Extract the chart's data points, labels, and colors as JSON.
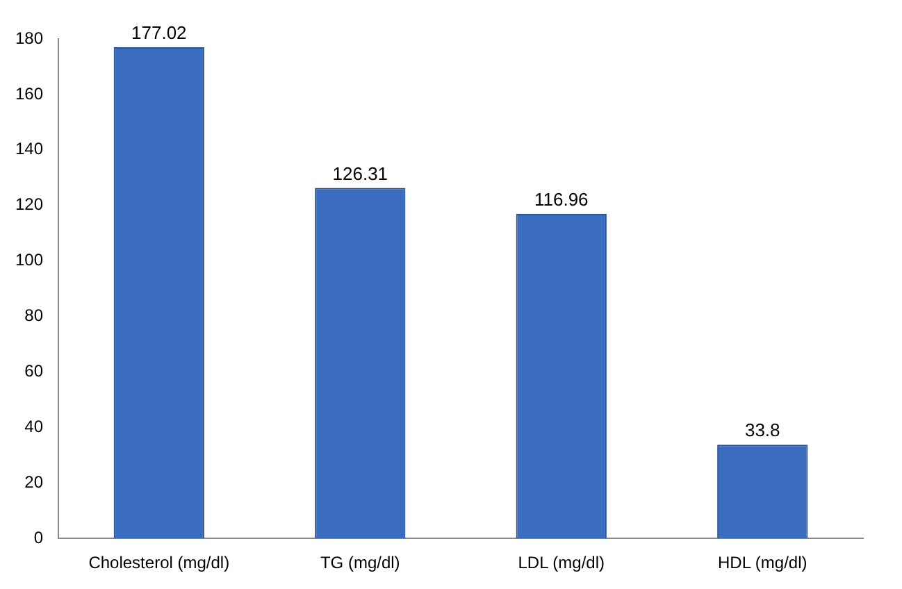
{
  "chart_data": {
    "type": "bar",
    "categories": [
      "Cholesterol (mg/dl)",
      "TG (mg/dl)",
      "LDL (mg/dl)",
      "HDL (mg/dl)"
    ],
    "values": [
      177.02,
      126.31,
      116.96,
      33.8
    ],
    "color": "#3a6cc0",
    "ylim": [
      0,
      180
    ],
    "yticks": [
      0,
      20,
      40,
      60,
      80,
      100,
      120,
      140,
      160,
      180
    ],
    "grid": false,
    "legend": false,
    "data_labels": true
  }
}
